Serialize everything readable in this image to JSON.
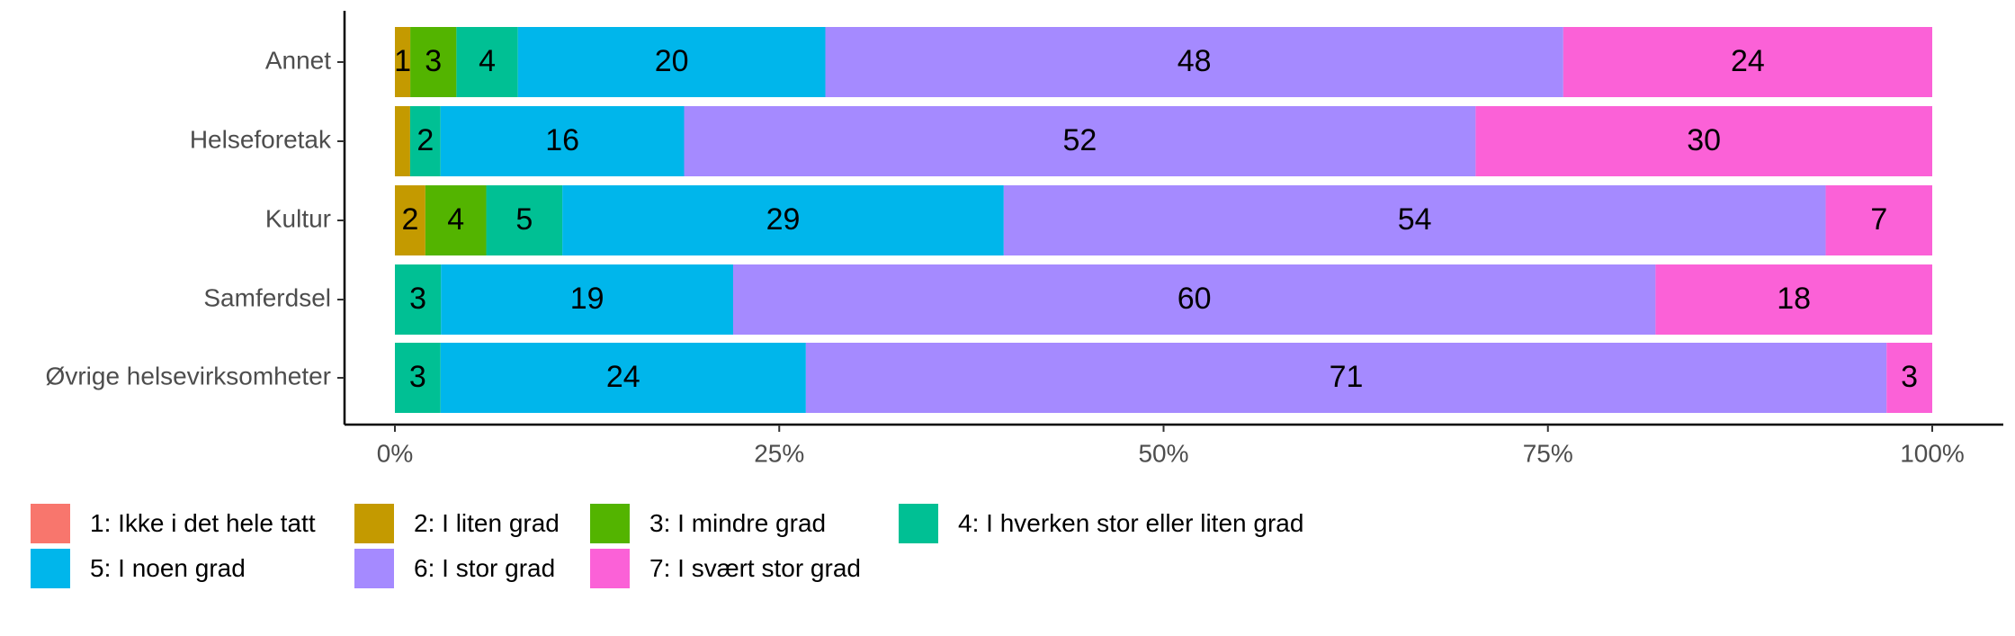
{
  "chart_data": {
    "type": "bar",
    "orientation": "horizontal",
    "stacked": "percent",
    "categories": [
      "Annet",
      "Helseforetak",
      "Kultur",
      "Samferdsel",
      "Øvrige helsevirksomheter"
    ],
    "xlim": [
      0,
      100
    ],
    "x_ticks": [
      "0%",
      "25%",
      "50%",
      "75%",
      "100%"
    ],
    "grid": false,
    "legend_position": "bottom",
    "series": [
      {
        "name": "1: Ikke i det hele tatt",
        "color": "#F8766D",
        "values": [
          0,
          0,
          0,
          0,
          0
        ]
      },
      {
        "name": "2: I liten grad",
        "color": "#C49A00",
        "values": [
          1,
          1,
          2,
          0,
          0
        ]
      },
      {
        "name": "3: I mindre grad",
        "color": "#53B400",
        "values": [
          3,
          0,
          4,
          0,
          0
        ]
      },
      {
        "name": "4: I hverken stor eller liten grad",
        "color": "#00C094",
        "values": [
          4,
          2,
          5,
          3,
          3
        ]
      },
      {
        "name": "5: I noen grad",
        "color": "#00B6EB",
        "values": [
          20,
          16,
          29,
          19,
          24
        ]
      },
      {
        "name": "6: I stor grad",
        "color": "#A58AFF",
        "values": [
          48,
          52,
          54,
          60,
          71
        ]
      },
      {
        "name": "7: I svært stor grad",
        "color": "#FB61D7",
        "values": [
          24,
          30,
          7,
          18,
          3
        ]
      }
    ],
    "data_labels": [
      [
        null,
        "1",
        "3",
        "4",
        "20",
        "48",
        "24"
      ],
      [
        null,
        "",
        null,
        "2",
        "16",
        "52",
        "30"
      ],
      [
        null,
        "2",
        "4",
        "5",
        "29",
        "54",
        "7"
      ],
      [
        null,
        null,
        null,
        "3",
        "19",
        "60",
        "18"
      ],
      [
        null,
        null,
        null,
        "3",
        "24",
        "71",
        "3"
      ]
    ]
  }
}
